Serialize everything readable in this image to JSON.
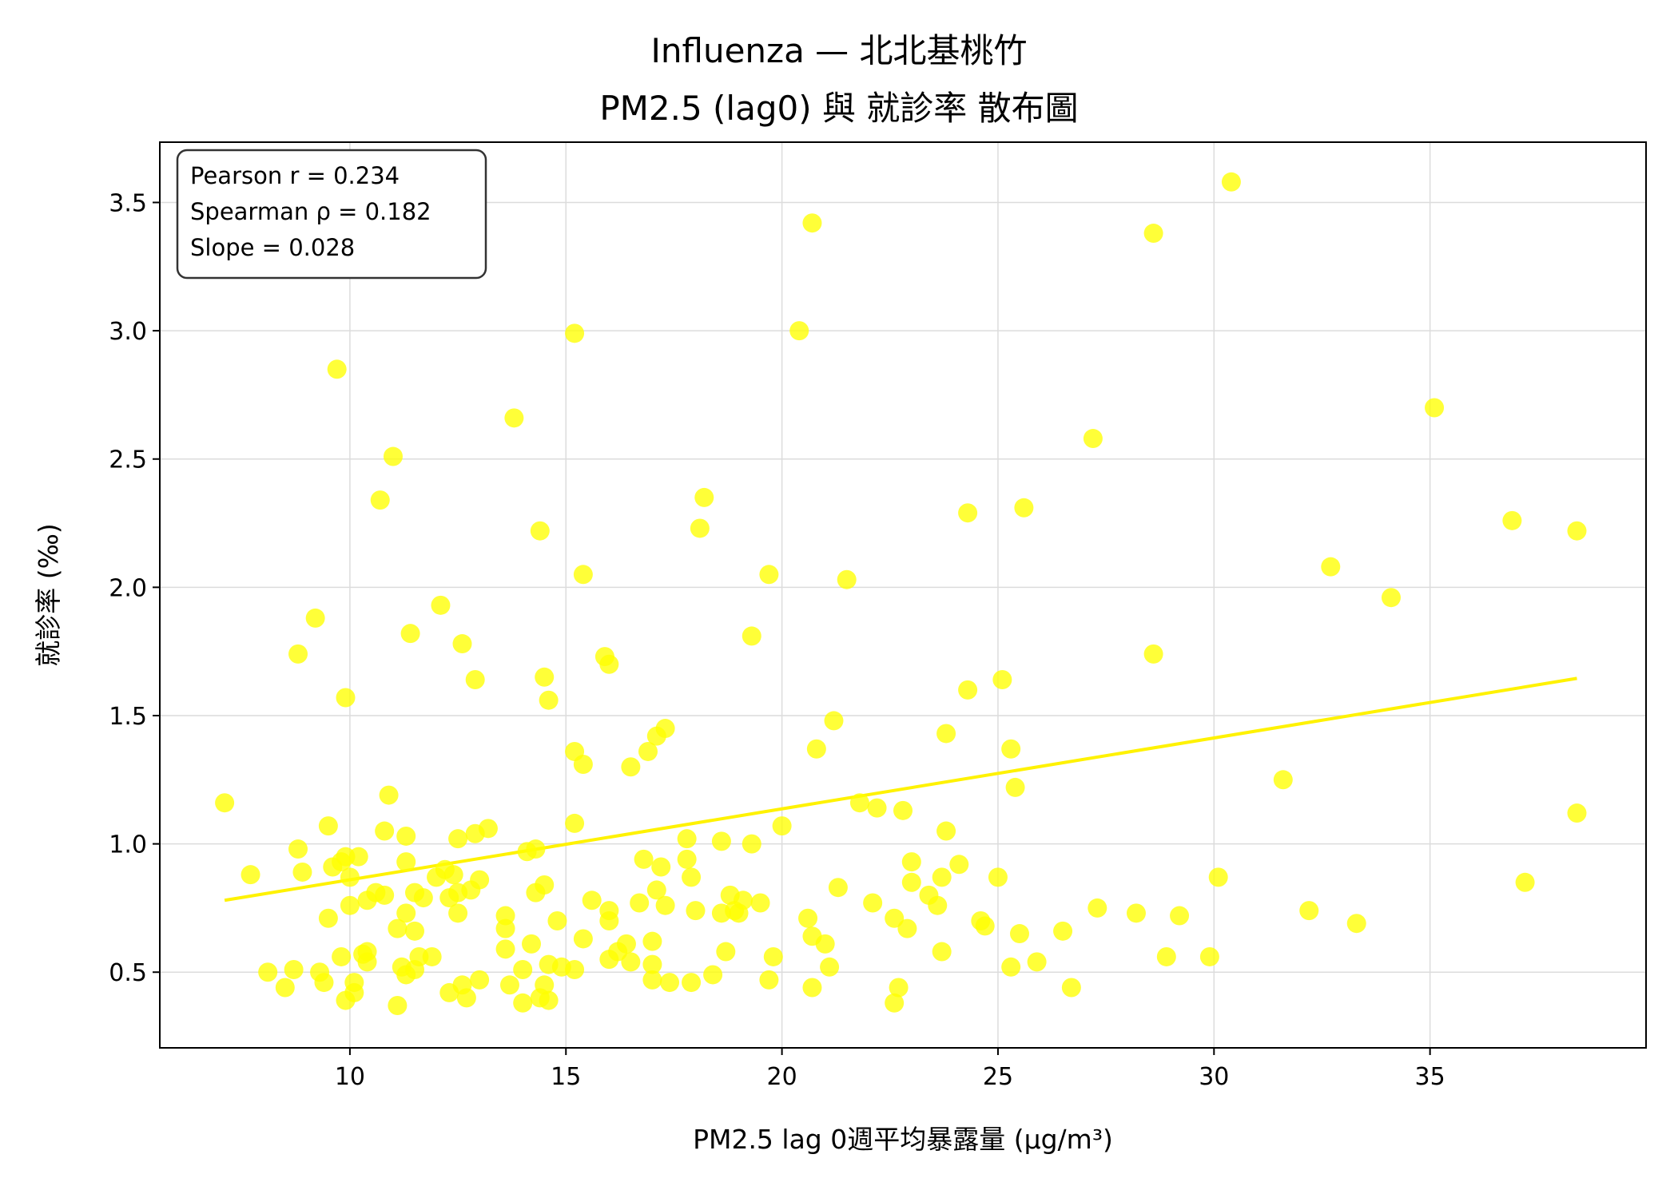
{
  "chart_data": {
    "type": "scatter",
    "title_line1": "Influenza — 北北基桃竹",
    "title_line2": "PM2.5 (lag0) 與 就診率 散布圖",
    "xlabel": "PM2.5 lag 0週平均暴露量 (μg/m³)",
    "ylabel": "就診率 (‰)",
    "xlim": [
      5.6,
      40.0
    ],
    "ylim": [
      0.205,
      3.735
    ],
    "xticks": [
      10,
      15,
      20,
      25,
      30,
      35
    ],
    "yticks": [
      0.5,
      1.0,
      1.5,
      2.0,
      2.5,
      3.0,
      3.5
    ],
    "xtick_labels": [
      "10",
      "15",
      "20",
      "25",
      "30",
      "35"
    ],
    "ytick_labels": [
      "0.5",
      "1.0",
      "1.5",
      "2.0",
      "2.5",
      "3.0",
      "3.5"
    ],
    "grid": true,
    "point_color": "#FFFF00",
    "line_color": "#FFF200",
    "stats": {
      "pearson": "Pearson r = 0.234",
      "spearman": "Spearman ρ = 0.182",
      "slope": "Slope = 0.028"
    },
    "regression_line": {
      "x": [
        7.1,
        38.4
      ],
      "y": [
        0.78,
        1.645
      ]
    },
    "points": [
      [
        7.1,
        1.16
      ],
      [
        7.7,
        0.88
      ],
      [
        8.1,
        0.5
      ],
      [
        8.5,
        0.44
      ],
      [
        8.7,
        0.51
      ],
      [
        8.8,
        0.98
      ],
      [
        8.8,
        1.74
      ],
      [
        8.9,
        0.89
      ],
      [
        9.2,
        1.88
      ],
      [
        9.3,
        0.5
      ],
      [
        9.4,
        0.46
      ],
      [
        9.5,
        1.07
      ],
      [
        9.5,
        0.71
      ],
      [
        9.6,
        0.91
      ],
      [
        9.7,
        2.85
      ],
      [
        9.8,
        0.56
      ],
      [
        9.8,
        0.93
      ],
      [
        9.9,
        0.39
      ],
      [
        9.9,
        1.57
      ],
      [
        9.9,
        0.95
      ],
      [
        10.0,
        0.76
      ],
      [
        10.0,
        0.87
      ],
      [
        10.1,
        0.46
      ],
      [
        10.1,
        0.42
      ],
      [
        10.2,
        0.95
      ],
      [
        10.3,
        0.57
      ],
      [
        10.4,
        0.78
      ],
      [
        10.4,
        0.58
      ],
      [
        10.4,
        0.54
      ],
      [
        10.6,
        0.81
      ],
      [
        10.7,
        2.34
      ],
      [
        10.8,
        0.8
      ],
      [
        10.8,
        1.05
      ],
      [
        10.9,
        1.19
      ],
      [
        11.0,
        2.51
      ],
      [
        11.1,
        0.67
      ],
      [
        11.1,
        0.37
      ],
      [
        11.2,
        0.52
      ],
      [
        11.3,
        0.73
      ],
      [
        11.3,
        1.03
      ],
      [
        11.3,
        0.93
      ],
      [
        11.3,
        0.49
      ],
      [
        11.4,
        1.82
      ],
      [
        11.5,
        0.51
      ],
      [
        11.5,
        0.81
      ],
      [
        11.5,
        0.66
      ],
      [
        11.6,
        0.56
      ],
      [
        11.7,
        0.79
      ],
      [
        11.9,
        0.56
      ],
      [
        12.0,
        0.87
      ],
      [
        12.1,
        1.93
      ],
      [
        12.2,
        0.9
      ],
      [
        12.3,
        0.42
      ],
      [
        12.3,
        0.79
      ],
      [
        12.4,
        0.88
      ],
      [
        12.5,
        0.81
      ],
      [
        12.5,
        1.02
      ],
      [
        12.5,
        0.73
      ],
      [
        12.6,
        1.78
      ],
      [
        12.6,
        0.45
      ],
      [
        12.7,
        0.4
      ],
      [
        12.8,
        0.82
      ],
      [
        12.9,
        1.64
      ],
      [
        12.9,
        1.04
      ],
      [
        13.0,
        0.47
      ],
      [
        13.0,
        0.86
      ],
      [
        13.2,
        1.06
      ],
      [
        13.6,
        0.72
      ],
      [
        13.6,
        0.67
      ],
      [
        13.6,
        0.59
      ],
      [
        13.7,
        0.45
      ],
      [
        13.8,
        2.66
      ],
      [
        14.0,
        0.51
      ],
      [
        14.0,
        0.38
      ],
      [
        14.1,
        0.97
      ],
      [
        14.2,
        0.61
      ],
      [
        14.3,
        0.98
      ],
      [
        14.3,
        0.81
      ],
      [
        14.4,
        0.4
      ],
      [
        14.4,
        2.22
      ],
      [
        14.5,
        1.65
      ],
      [
        14.5,
        0.84
      ],
      [
        14.5,
        0.45
      ],
      [
        14.6,
        0.53
      ],
      [
        14.6,
        1.56
      ],
      [
        14.6,
        0.39
      ],
      [
        14.8,
        0.7
      ],
      [
        14.9,
        0.52
      ],
      [
        15.2,
        0.51
      ],
      [
        15.2,
        1.36
      ],
      [
        15.2,
        2.99
      ],
      [
        15.2,
        1.08
      ],
      [
        15.4,
        2.05
      ],
      [
        15.4,
        1.31
      ],
      [
        15.4,
        0.63
      ],
      [
        15.6,
        0.78
      ],
      [
        15.9,
        1.73
      ],
      [
        16.0,
        0.74
      ],
      [
        16.0,
        0.7
      ],
      [
        16.0,
        1.7
      ],
      [
        16.0,
        0.55
      ],
      [
        16.2,
        0.58
      ],
      [
        16.4,
        0.61
      ],
      [
        16.5,
        1.3
      ],
      [
        16.5,
        0.54
      ],
      [
        16.7,
        0.77
      ],
      [
        16.8,
        0.94
      ],
      [
        16.9,
        1.36
      ],
      [
        17.0,
        0.62
      ],
      [
        17.0,
        0.53
      ],
      [
        17.0,
        0.47
      ],
      [
        17.1,
        1.42
      ],
      [
        17.1,
        0.82
      ],
      [
        17.2,
        0.91
      ],
      [
        17.3,
        0.76
      ],
      [
        17.3,
        1.45
      ],
      [
        17.4,
        0.46
      ],
      [
        17.8,
        1.02
      ],
      [
        17.8,
        0.94
      ],
      [
        17.9,
        0.87
      ],
      [
        17.9,
        0.46
      ],
      [
        18.0,
        0.74
      ],
      [
        18.1,
        2.23
      ],
      [
        18.2,
        2.35
      ],
      [
        18.4,
        0.49
      ],
      [
        18.6,
        1.01
      ],
      [
        18.6,
        0.73
      ],
      [
        18.7,
        0.58
      ],
      [
        18.8,
        0.8
      ],
      [
        18.9,
        0.74
      ],
      [
        19.0,
        0.73
      ],
      [
        19.1,
        0.78
      ],
      [
        19.3,
        1.81
      ],
      [
        19.3,
        1.0
      ],
      [
        19.5,
        0.77
      ],
      [
        19.7,
        2.05
      ],
      [
        19.7,
        0.47
      ],
      [
        19.8,
        0.56
      ],
      [
        20.0,
        1.07
      ],
      [
        20.4,
        3.0
      ],
      [
        20.6,
        0.71
      ],
      [
        20.7,
        3.42
      ],
      [
        20.7,
        0.44
      ],
      [
        20.7,
        0.64
      ],
      [
        20.8,
        1.37
      ],
      [
        21.0,
        0.61
      ],
      [
        21.1,
        0.52
      ],
      [
        21.2,
        1.48
      ],
      [
        21.3,
        0.83
      ],
      [
        21.5,
        2.03
      ],
      [
        21.8,
        1.16
      ],
      [
        22.1,
        0.77
      ],
      [
        22.2,
        1.14
      ],
      [
        22.6,
        0.38
      ],
      [
        22.6,
        0.71
      ],
      [
        22.7,
        0.44
      ],
      [
        22.8,
        1.13
      ],
      [
        22.9,
        0.67
      ],
      [
        23.0,
        0.85
      ],
      [
        23.0,
        0.93
      ],
      [
        23.4,
        0.8
      ],
      [
        23.6,
        0.76
      ],
      [
        23.7,
        0.58
      ],
      [
        23.7,
        0.87
      ],
      [
        23.8,
        1.43
      ],
      [
        23.8,
        1.05
      ],
      [
        24.1,
        0.92
      ],
      [
        24.3,
        1.6
      ],
      [
        24.3,
        2.29
      ],
      [
        24.6,
        0.7
      ],
      [
        24.7,
        0.68
      ],
      [
        25.0,
        0.87
      ],
      [
        25.1,
        1.64
      ],
      [
        25.3,
        1.37
      ],
      [
        25.3,
        0.52
      ],
      [
        25.4,
        1.22
      ],
      [
        25.5,
        0.65
      ],
      [
        25.6,
        2.31
      ],
      [
        25.9,
        0.54
      ],
      [
        26.5,
        0.66
      ],
      [
        26.7,
        0.44
      ],
      [
        27.2,
        2.58
      ],
      [
        27.3,
        0.75
      ],
      [
        28.2,
        0.73
      ],
      [
        28.6,
        1.74
      ],
      [
        28.6,
        3.38
      ],
      [
        28.9,
        0.56
      ],
      [
        29.2,
        0.72
      ],
      [
        29.9,
        0.56
      ],
      [
        30.1,
        0.87
      ],
      [
        30.4,
        3.58
      ],
      [
        31.6,
        1.25
      ],
      [
        32.2,
        0.74
      ],
      [
        32.7,
        2.08
      ],
      [
        33.3,
        0.69
      ],
      [
        34.1,
        1.96
      ],
      [
        35.1,
        2.7
      ],
      [
        36.9,
        2.26
      ],
      [
        37.2,
        0.85
      ],
      [
        38.4,
        1.12
      ],
      [
        38.4,
        2.22
      ]
    ]
  }
}
